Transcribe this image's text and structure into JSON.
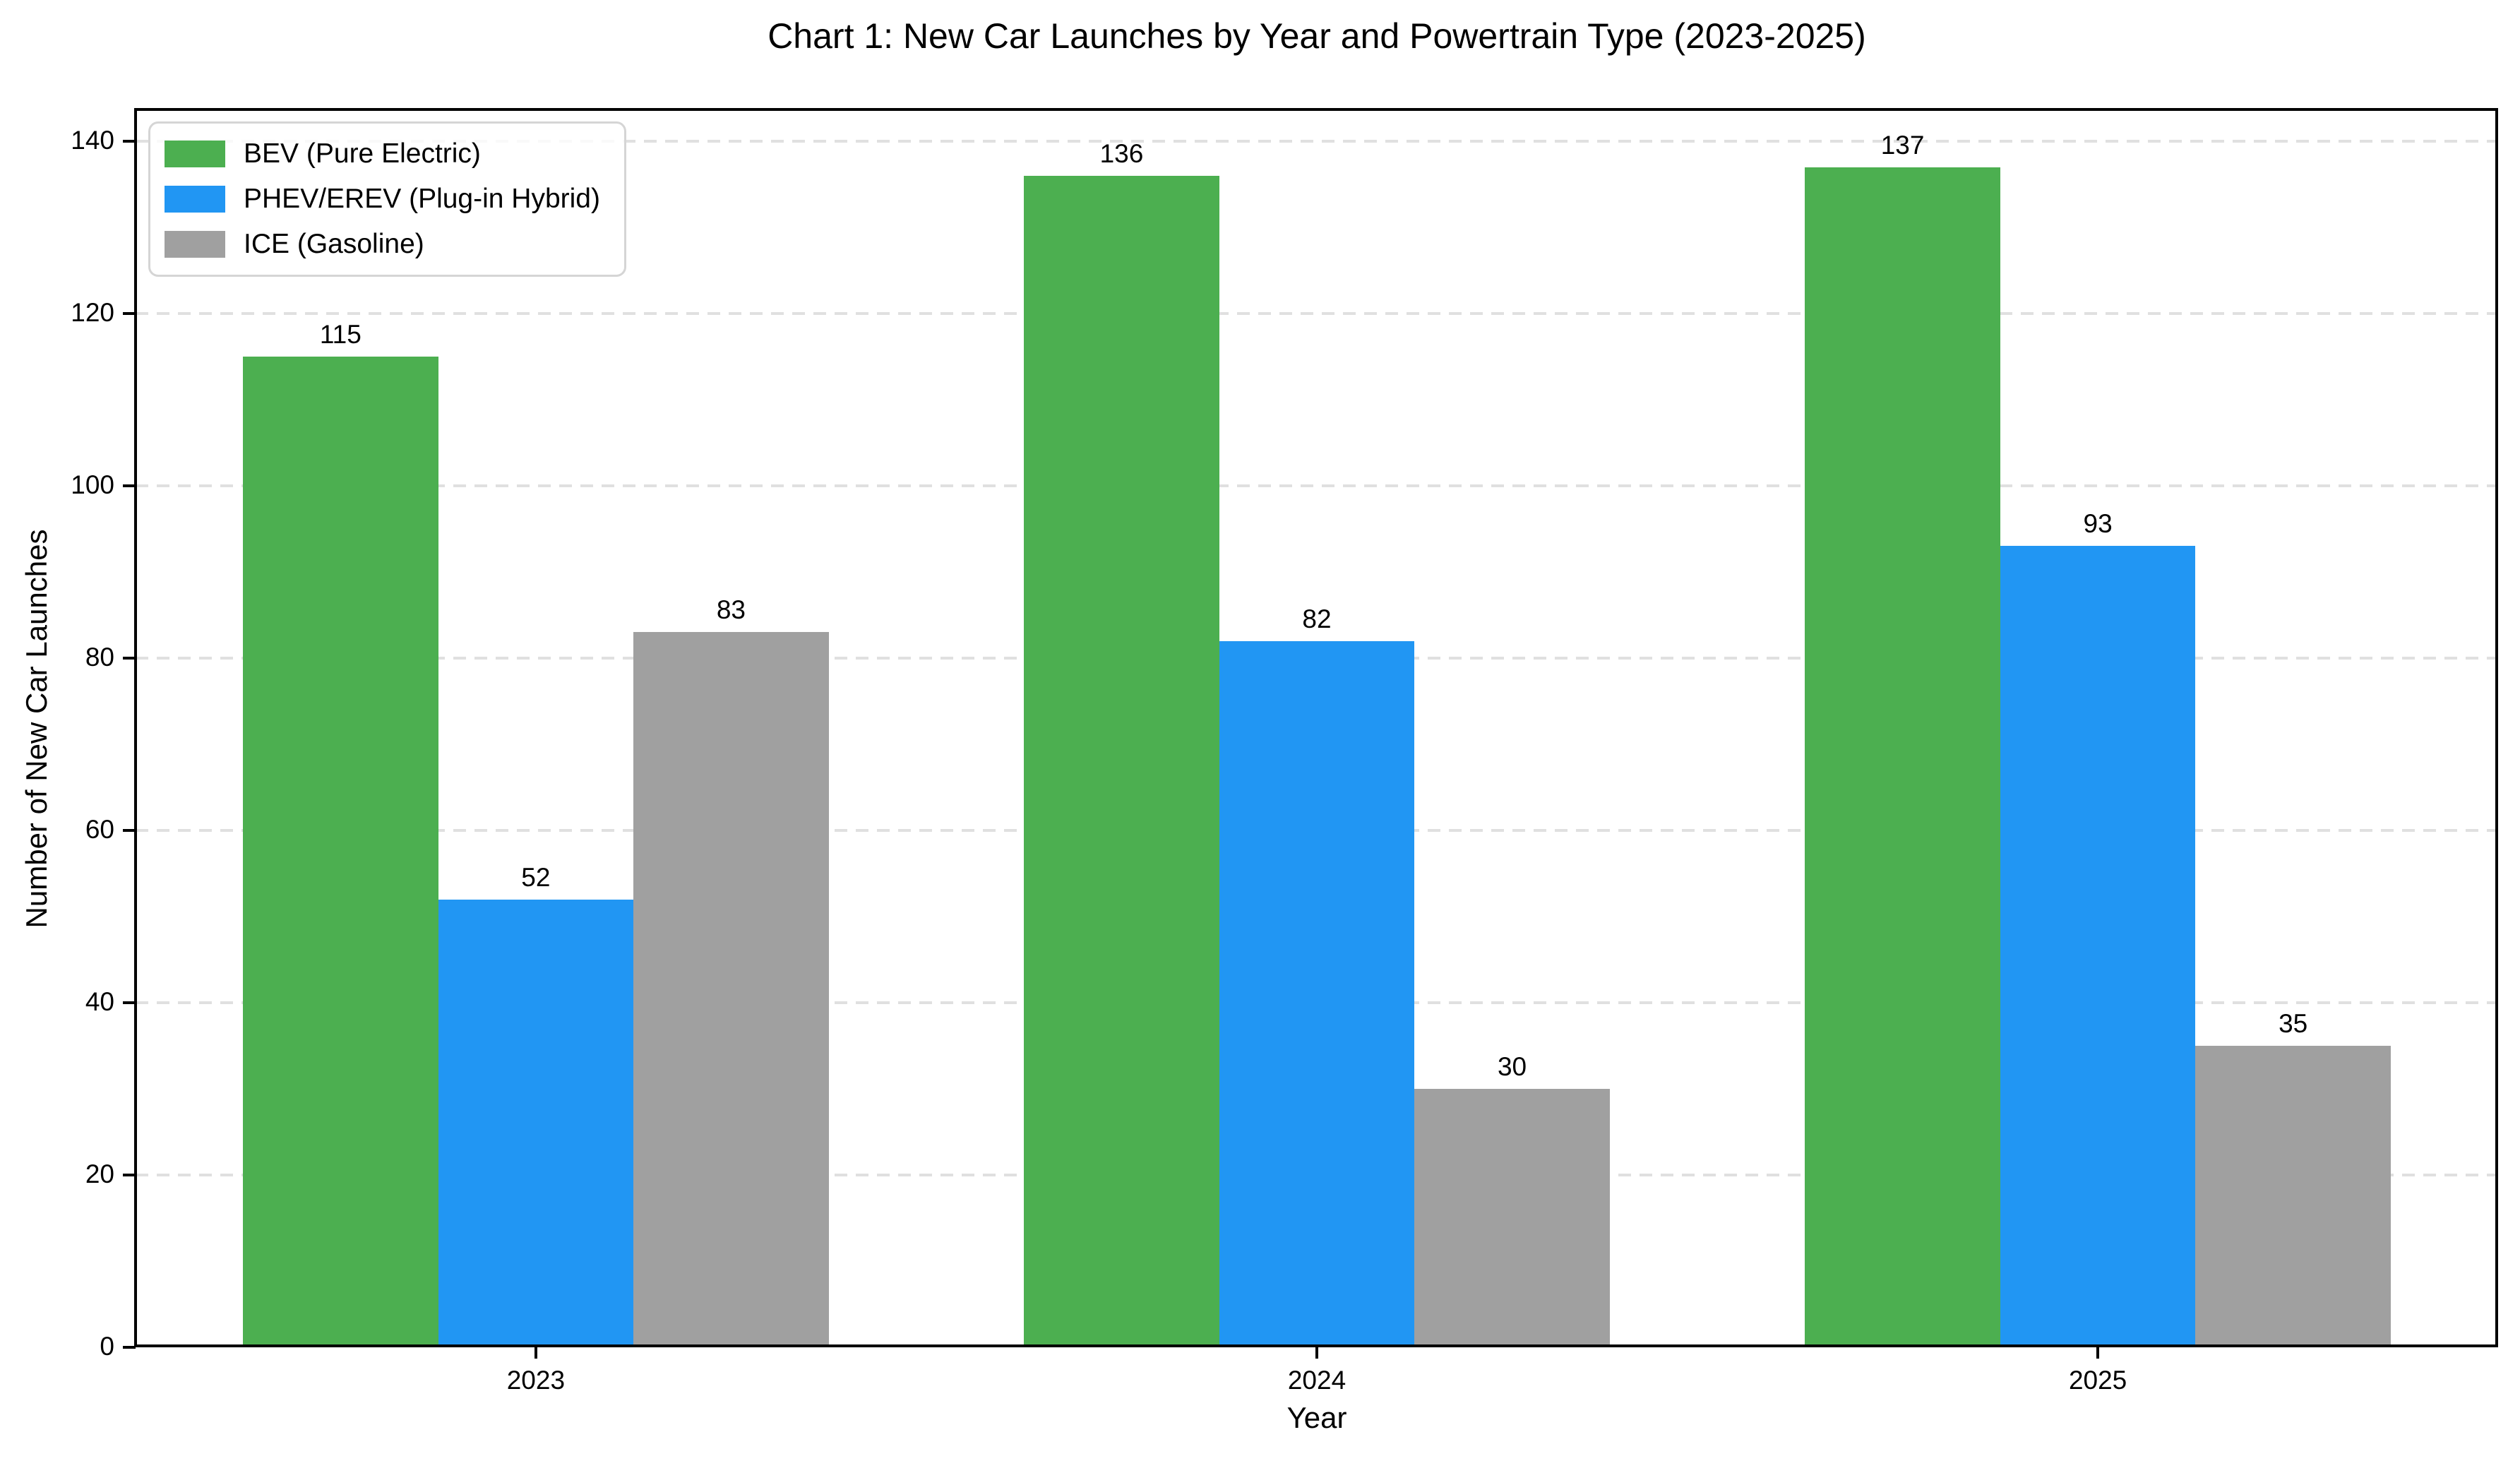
{
  "chart_data": {
    "type": "bar",
    "title": "Chart 1: New Car Launches by Year and Powertrain Type (2023-2025)",
    "xlabel": "Year",
    "ylabel": "Number of New Car Launches",
    "categories": [
      "2023",
      "2024",
      "2025"
    ],
    "series": [
      {
        "name": "BEV (Pure Electric)",
        "color": "#4CAF50",
        "values": [
          115,
          136,
          137
        ]
      },
      {
        "name": "PHEV/EREV (Plug-in Hybrid)",
        "color": "#2196F3",
        "values": [
          52,
          82,
          93
        ]
      },
      {
        "name": "ICE (Gasoline)",
        "color": "#A0A0A0",
        "values": [
          83,
          30,
          35
        ]
      }
    ],
    "yticks": [
      0,
      20,
      40,
      60,
      80,
      100,
      120,
      140
    ],
    "ylim": [
      0,
      143.7
    ],
    "bar_value_labels": true,
    "legend_position": "upper left",
    "grid": {
      "axis": "y",
      "style": "dashed",
      "color": "#E0E0E0"
    },
    "axis_color": "#000000",
    "background_color": "#FFFFFF"
  }
}
